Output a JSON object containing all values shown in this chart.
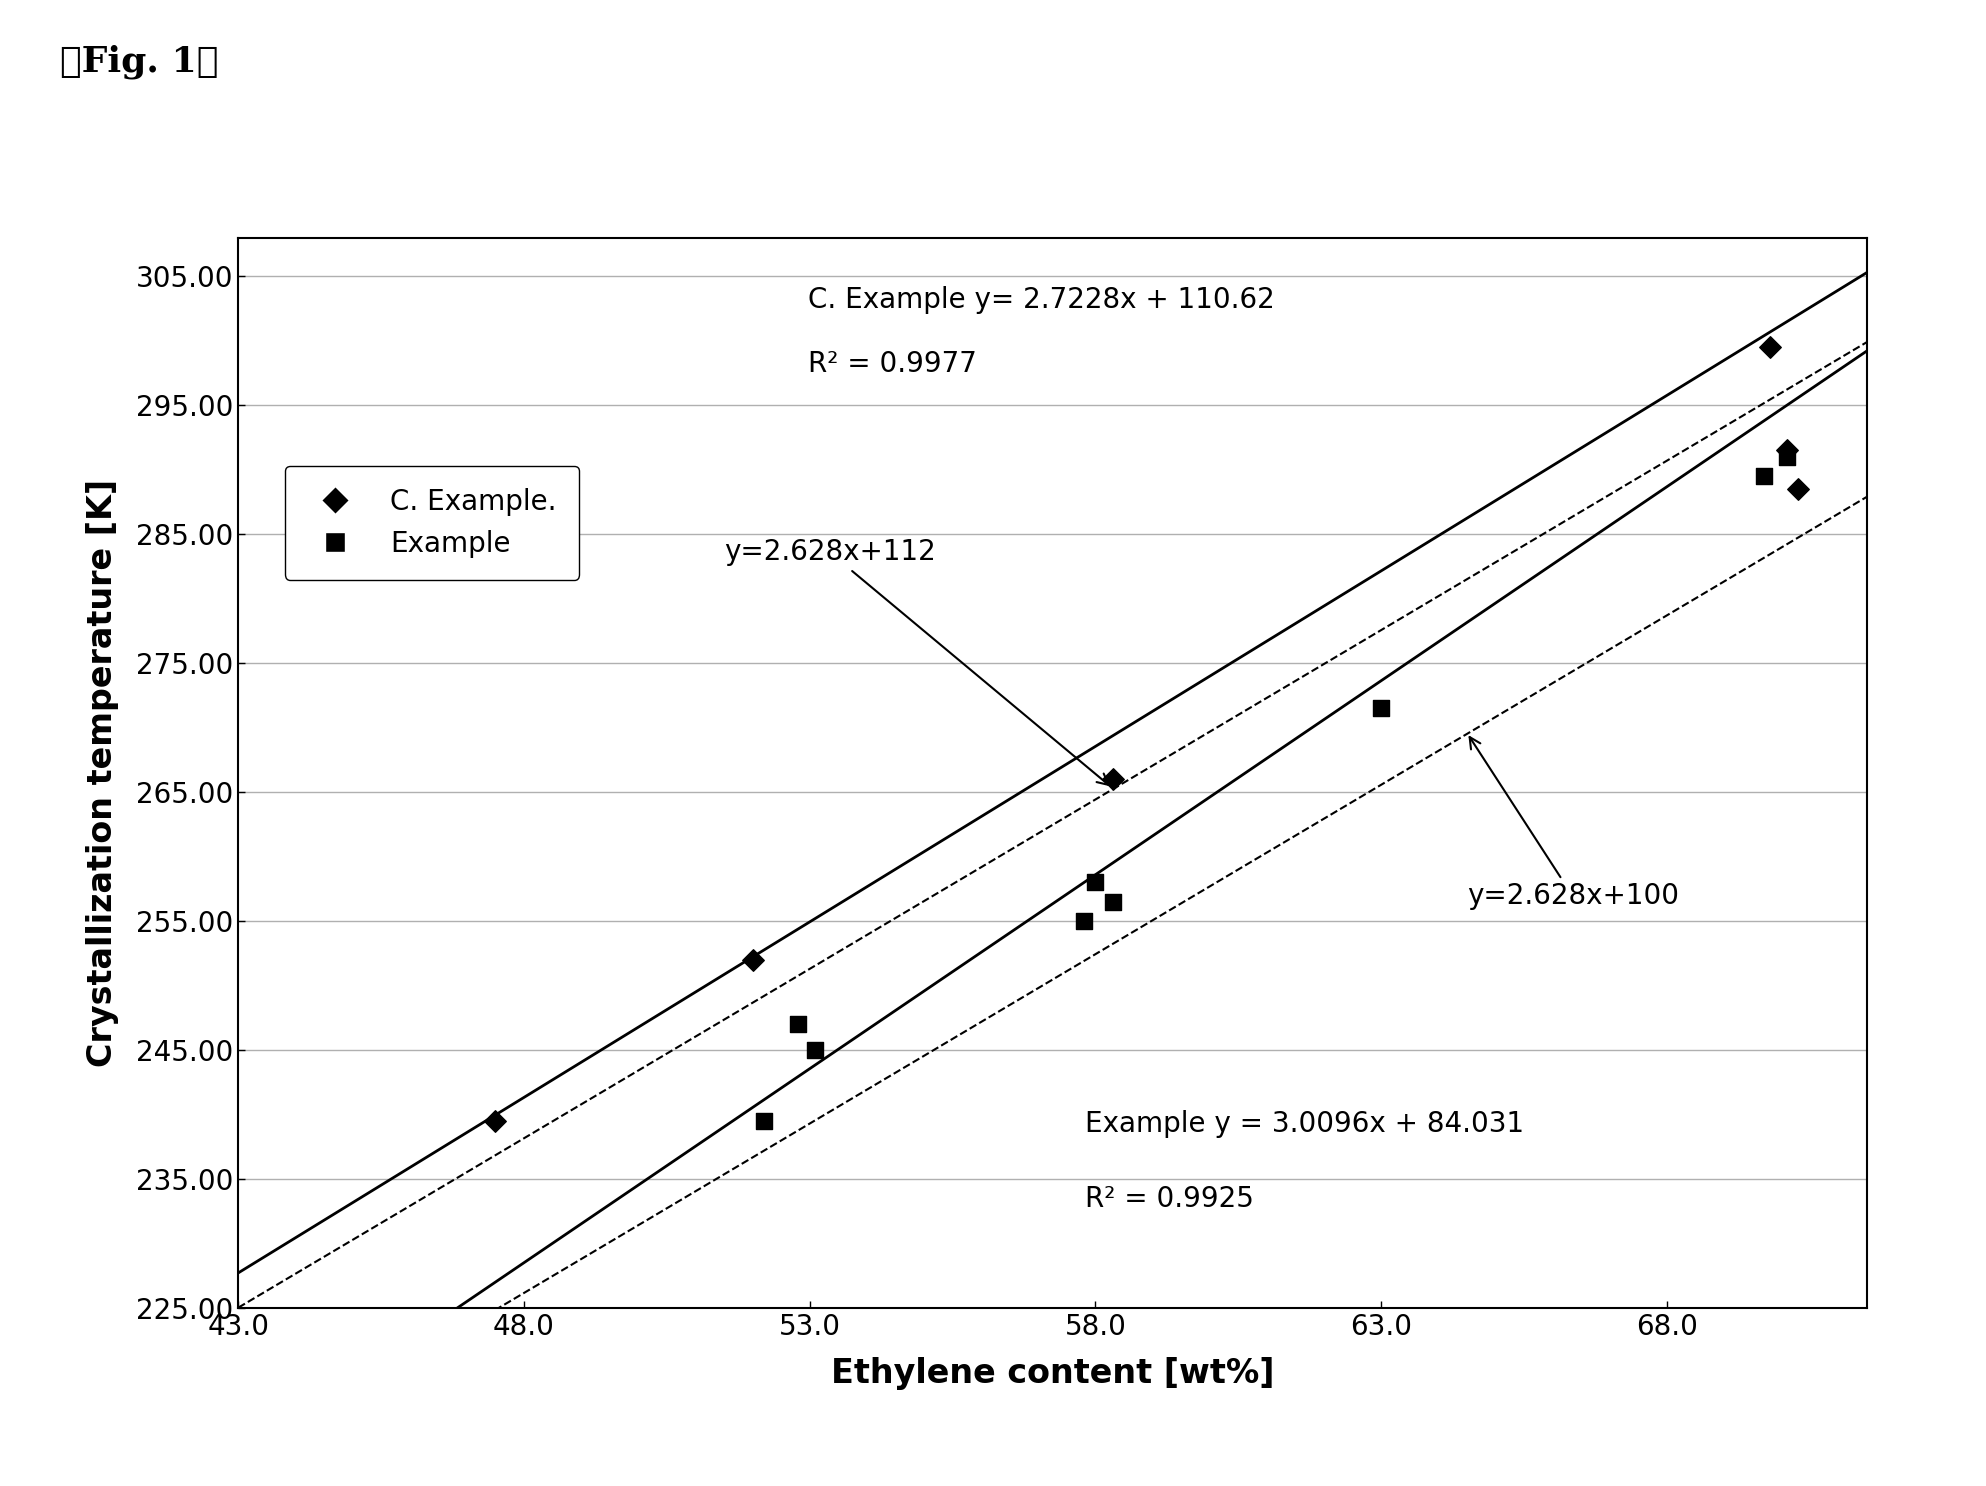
{
  "title": "「Fig. 1」",
  "xlabel": "Ethylene content [wt%]",
  "ylabel": "Crystallization temperature [K]",
  "xlim": [
    43.0,
    71.5
  ],
  "ylim": [
    225.0,
    308.0
  ],
  "xticks": [
    43.0,
    48.0,
    53.0,
    58.0,
    63.0,
    68.0
  ],
  "yticks": [
    225.0,
    235.0,
    245.0,
    255.0,
    265.0,
    275.0,
    285.0,
    295.0,
    305.0
  ],
  "c_example_x": [
    47.5,
    52.0,
    58.3,
    69.8,
    70.1,
    70.3
  ],
  "c_example_y": [
    239.5,
    252.0,
    266.0,
    299.5,
    291.5,
    288.5
  ],
  "example_x": [
    52.2,
    52.8,
    53.1,
    57.8,
    58.0,
    58.3,
    63.0,
    69.7,
    70.1
  ],
  "example_y": [
    239.5,
    247.0,
    245.0,
    255.0,
    258.0,
    256.5,
    271.5,
    289.5,
    291.0
  ],
  "line_c_example_slope": 2.7228,
  "line_c_example_intercept": 110.62,
  "line_example_slope": 3.0096,
  "line_example_intercept": 84.031,
  "dashed_line1_slope": 2.628,
  "dashed_line1_intercept": 112,
  "dashed_line2_slope": 2.628,
  "dashed_line2_intercept": 100,
  "annotation_c_example_eq": "C. Example y= 2.7228x + 110.62",
  "annotation_c_example_r2": "R² = 0.9977",
  "annotation_example_eq": "Example y = 3.0096x + 84.031",
  "annotation_example_r2": "R² = 0.9925",
  "annotation_dashed1": "y=2.628x+112",
  "annotation_dashed2": "y=2.628x+100",
  "legend_c_example": "C. Example.",
  "legend_example": "Example",
  "marker_color": "#000000",
  "line_color": "#000000",
  "background_color": "#ffffff",
  "grid_color": "#b0b0b0"
}
